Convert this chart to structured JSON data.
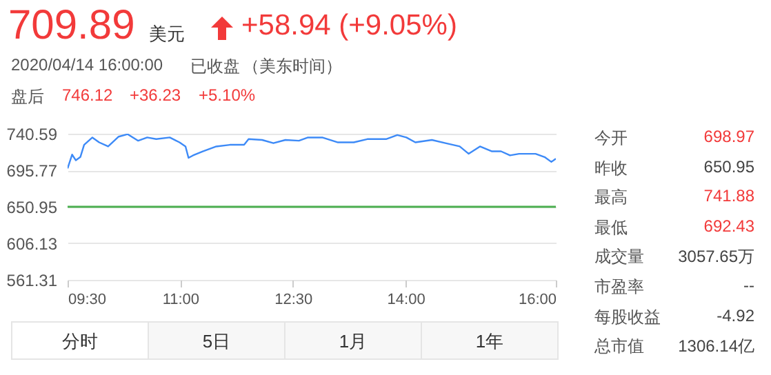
{
  "chart_data": [
    {
      "type": "line",
      "title": "709.89",
      "annotations": [
        "美元",
        "+58.94 (+9.05%)",
        "2020/04/14 16:00:00",
        "已收盘",
        "（美东时间）",
        "盘后",
        "746.12",
        "+36.23",
        "+5.10%",
        "分时",
        "5日",
        "1月",
        "1年"
      ],
      "x": [
        9.5,
        9.56,
        9.61,
        9.67,
        9.72,
        9.83,
        9.92,
        10.04,
        10.18,
        10.3,
        10.44,
        10.56,
        10.68,
        10.86,
        10.99,
        11.07,
        11.11,
        11.17,
        11.3,
        11.48,
        11.66,
        11.85,
        11.91,
        12.09,
        12.24,
        12.4,
        12.58,
        12.7,
        12.89,
        13.1,
        13.31,
        13.49,
        13.74,
        13.89,
        14.01,
        14.13,
        14.35,
        14.53,
        14.72,
        14.84,
        14.99,
        15.15,
        15.27,
        15.39,
        15.51,
        15.73,
        15.85,
        15.94,
        16
      ],
      "series": [
        {
          "color": "#3d8af7",
          "values": [
            698,
            715,
            708,
            712,
            727,
            736,
            730,
            725,
            737,
            740,
            732,
            736,
            734,
            736,
            730,
            725,
            711,
            714,
            719,
            725,
            727,
            727,
            734,
            733,
            729,
            733,
            732,
            736,
            736,
            730,
            730,
            734,
            734,
            739,
            736,
            730,
            733,
            729,
            725,
            716,
            725,
            719,
            719,
            714,
            716,
            716,
            712,
            706,
            710
          ]
        }
      ],
      "xlim": [
        9.5,
        16
      ],
      "xticks": [
        {
          "value": 9.5,
          "label": "09:30"
        },
        {
          "value": 11,
          "label": "11:00"
        },
        {
          "value": 12.5,
          "label": "12:30"
        },
        {
          "value": 14,
          "label": "14:00"
        },
        {
          "value": 16,
          "label": "16:00"
        }
      ],
      "ylim": [
        561.31,
        740.59
      ],
      "yticks": [
        561.31,
        606.13,
        650.95,
        695.77,
        740.59
      ],
      "grid": "y",
      "ref_lines": [
        {
          "axis": "y",
          "value": 650.95,
          "color": "#4caf50"
        }
      ]
    },
    {
      "type": "other",
      "annotations": [
        "今开",
        "698.97",
        "昨收",
        "650.95",
        "最高",
        "741.88",
        "最低",
        "692.43",
        "成交量",
        "3057.65万",
        "市盈率",
        "--",
        "每股收益",
        "-4.92",
        "总市值",
        "1306.14亿"
      ]
    }
  ]
}
